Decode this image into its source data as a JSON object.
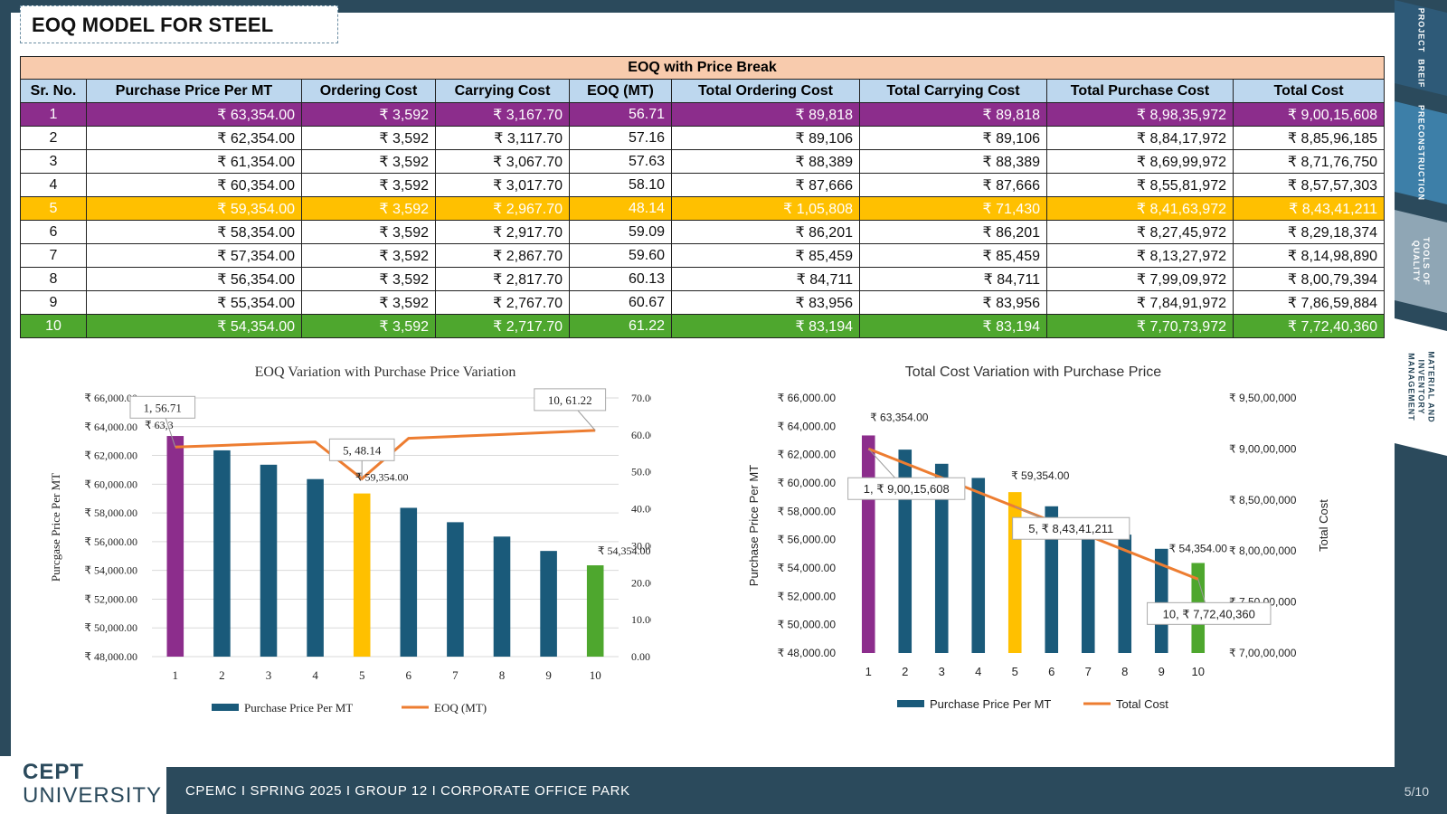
{
  "page": {
    "title": "EOQ MODEL FOR STEEL",
    "footer_text": "CPEMC I SPRING 2025 I GROUP 12 I CORPORATE  OFFICE  PARK",
    "page_number": "5/10",
    "logo_line1": "CEPT",
    "logo_line2": "UNIVERSITY"
  },
  "nav": [
    {
      "label": "PROJECT  BREIF",
      "active": false
    },
    {
      "label": "PRECONSTRUCTION",
      "active": false
    },
    {
      "label": "TOOLS OF\nQUALITY",
      "active": false
    },
    {
      "label": "MATERIAL AND\nINVENTORY\nMANAGEMENT",
      "active": true
    }
  ],
  "colors": {
    "purple": "#8c2d8c",
    "blue": "#1a5a7a",
    "yellow": "#ffc000",
    "green": "#4ea72e",
    "line": "#ed7d31",
    "header": "#bdd7ee",
    "caption": "#f8cbad",
    "dark": "#2b4a5c"
  },
  "table": {
    "caption": "EOQ with Price Break",
    "headers": [
      "Sr. No.",
      "Purchase Price Per MT",
      "Ordering Cost",
      "Carrying Cost",
      "EOQ (MT)",
      "Total Ordering Cost",
      "Total Carrying Cost",
      "Total Purchase Cost",
      "Total Cost"
    ],
    "rows": [
      {
        "highlight": "purple",
        "cells": [
          "1",
          "₹ 63,354.00",
          "₹ 3,592",
          "₹ 3,167.70",
          "56.71",
          "₹ 89,818",
          "₹ 89,818",
          "₹ 8,98,35,972",
          "₹ 9,00,15,608"
        ]
      },
      {
        "highlight": "",
        "cells": [
          "2",
          "₹ 62,354.00",
          "₹ 3,592",
          "₹ 3,117.70",
          "57.16",
          "₹ 89,106",
          "₹ 89,106",
          "₹ 8,84,17,972",
          "₹ 8,85,96,185"
        ]
      },
      {
        "highlight": "",
        "cells": [
          "3",
          "₹ 61,354.00",
          "₹ 3,592",
          "₹ 3,067.70",
          "57.63",
          "₹ 88,389",
          "₹ 88,389",
          "₹ 8,69,99,972",
          "₹ 8,71,76,750"
        ]
      },
      {
        "highlight": "",
        "cells": [
          "4",
          "₹ 60,354.00",
          "₹ 3,592",
          "₹ 3,017.70",
          "58.10",
          "₹ 87,666",
          "₹ 87,666",
          "₹ 8,55,81,972",
          "₹ 8,57,57,303"
        ]
      },
      {
        "highlight": "yellow",
        "cells": [
          "5",
          "₹ 59,354.00",
          "₹ 3,592",
          "₹ 2,967.70",
          "48.14",
          "₹ 1,05,808",
          "₹ 71,430",
          "₹ 8,41,63,972",
          "₹ 8,43,41,211"
        ]
      },
      {
        "highlight": "",
        "cells": [
          "6",
          "₹ 58,354.00",
          "₹ 3,592",
          "₹ 2,917.70",
          "59.09",
          "₹ 86,201",
          "₹ 86,201",
          "₹ 8,27,45,972",
          "₹ 8,29,18,374"
        ]
      },
      {
        "highlight": "",
        "cells": [
          "7",
          "₹ 57,354.00",
          "₹ 3,592",
          "₹ 2,867.70",
          "59.60",
          "₹ 85,459",
          "₹ 85,459",
          "₹ 8,13,27,972",
          "₹ 8,14,98,890"
        ]
      },
      {
        "highlight": "",
        "cells": [
          "8",
          "₹ 56,354.00",
          "₹ 3,592",
          "₹ 2,817.70",
          "60.13",
          "₹ 84,711",
          "₹ 84,711",
          "₹ 7,99,09,972",
          "₹ 8,00,79,394"
        ]
      },
      {
        "highlight": "",
        "cells": [
          "9",
          "₹ 55,354.00",
          "₹ 3,592",
          "₹ 2,767.70",
          "60.67",
          "₹ 83,956",
          "₹ 83,956",
          "₹ 7,84,91,972",
          "₹ 7,86,59,884"
        ]
      },
      {
        "highlight": "green",
        "cells": [
          "10",
          "₹ 54,354.00",
          "₹ 3,592",
          "₹ 2,717.70",
          "61.22",
          "₹ 83,194",
          "₹ 83,194",
          "₹ 7,70,73,972",
          "₹ 7,72,40,360"
        ]
      }
    ]
  },
  "chart_data": [
    {
      "type": "bar",
      "title": "EOQ Variation  with  Purchase Price Variation",
      "categories": [
        "1",
        "2",
        "3",
        "4",
        "5",
        "6",
        "7",
        "8",
        "9",
        "10"
      ],
      "bar_colors": [
        "#8c2d8c",
        "#1a5a7a",
        "#1a5a7a",
        "#1a5a7a",
        "#ffc000",
        "#1a5a7a",
        "#1a5a7a",
        "#1a5a7a",
        "#1a5a7a",
        "#4ea72e"
      ],
      "series": [
        {
          "name": "Purchase Price Per MT",
          "type": "bar",
          "axis": "left",
          "values": [
            63354,
            62354,
            61354,
            60354,
            59354,
            58354,
            57354,
            56354,
            55354,
            54354
          ]
        },
        {
          "name": "EOQ (MT)",
          "type": "line",
          "axis": "right",
          "values": [
            56.71,
            57.16,
            57.63,
            58.1,
            48.14,
            59.09,
            59.6,
            60.13,
            60.67,
            61.22
          ]
        }
      ],
      "ylabel": "Purcgase Price  Per MT",
      "ylabel_right": "",
      "ylim": [
        48000,
        66000
      ],
      "ylim_right": [
        0,
        70
      ],
      "yticks": [
        "₹ 48,000.00",
        "₹ 50,000.00",
        "₹ 52,000.00",
        "₹ 54,000.00",
        "₹ 56,000.00",
        "₹ 58,000.00",
        "₹ 60,000.00",
        "₹ 62,000.00",
        "₹ 64,000.00",
        "₹ 66,000.00"
      ],
      "yticks_right": [
        "0.00",
        "10.00",
        "20.00",
        "30.00",
        "40.00",
        "50.00",
        "60.00",
        "70.00"
      ],
      "annotations": [
        {
          "series": "Purchase Price Per MT",
          "index": 0,
          "text": "₹ 63,3"
        },
        {
          "series": "Purchase Price Per MT",
          "index": 4,
          "text": "₹ 59,354.00"
        },
        {
          "series": "Purchase Price Per MT",
          "index": 9,
          "text": "₹ 54,354.00"
        },
        {
          "series": "EOQ (MT)",
          "index": 0,
          "text": "1, 56.71",
          "callout": true
        },
        {
          "series": "EOQ (MT)",
          "index": 4,
          "text": "5, 48.14",
          "callout": true
        },
        {
          "series": "EOQ (MT)",
          "index": 9,
          "text": "10, 61.22",
          "callout": true
        }
      ],
      "grid": true,
      "legend": "bottom"
    },
    {
      "type": "bar",
      "title": "Total Cost Variation with Purchase Price",
      "categories": [
        "1",
        "2",
        "3",
        "4",
        "5",
        "6",
        "7",
        "8",
        "9",
        "10"
      ],
      "bar_colors": [
        "#8c2d8c",
        "#1a5a7a",
        "#1a5a7a",
        "#1a5a7a",
        "#ffc000",
        "#1a5a7a",
        "#1a5a7a",
        "#1a5a7a",
        "#1a5a7a",
        "#4ea72e"
      ],
      "series": [
        {
          "name": "Purchase Price Per MT",
          "type": "bar",
          "axis": "left",
          "values": [
            63354,
            62354,
            61354,
            60354,
            59354,
            58354,
            57354,
            56354,
            55354,
            54354
          ]
        },
        {
          "name": "Total Cost",
          "type": "line",
          "axis": "right",
          "values": [
            90015608,
            88596185,
            87176750,
            85757303,
            84341211,
            82918374,
            81498890,
            80079394,
            78659884,
            77240360
          ]
        }
      ],
      "ylabel": "Purchase Price Per MT",
      "ylabel_right": "Total Cost",
      "ylim": [
        48000,
        66000
      ],
      "ylim_right": [
        70000000,
        95000000
      ],
      "yticks": [
        "₹ 48,000.00",
        "₹ 50,000.00",
        "₹ 52,000.00",
        "₹ 54,000.00",
        "₹ 56,000.00",
        "₹ 58,000.00",
        "₹ 60,000.00",
        "₹ 62,000.00",
        "₹ 64,000.00",
        "₹ 66,000.00"
      ],
      "yticks_right": [
        "₹ 7,00,00,000",
        "₹ 7,50,00,000",
        "₹ 8,00,00,000",
        "₹ 8,50,00,000",
        "₹ 9,00,00,000",
        "₹ 9,50,00,000"
      ],
      "annotations": [
        {
          "series": "Purchase Price Per MT",
          "index": 0,
          "text": "₹ 63,354.00"
        },
        {
          "series": "Purchase Price Per MT",
          "index": 4,
          "text": "₹ 59,354.00"
        },
        {
          "series": "Purchase Price Per MT",
          "index": 9,
          "text": "₹ 54,354.00"
        },
        {
          "series": "Total Cost",
          "index": 0,
          "text": "1, ₹ 9,00,15,608",
          "callout": true
        },
        {
          "series": "Total Cost",
          "index": 4,
          "text": "5, ₹ 8,43,41,211",
          "callout": true
        },
        {
          "series": "Total Cost",
          "index": 9,
          "text": "10, ₹ 7,72,40,360",
          "callout": true
        }
      ],
      "grid": false,
      "legend": "bottom"
    }
  ]
}
